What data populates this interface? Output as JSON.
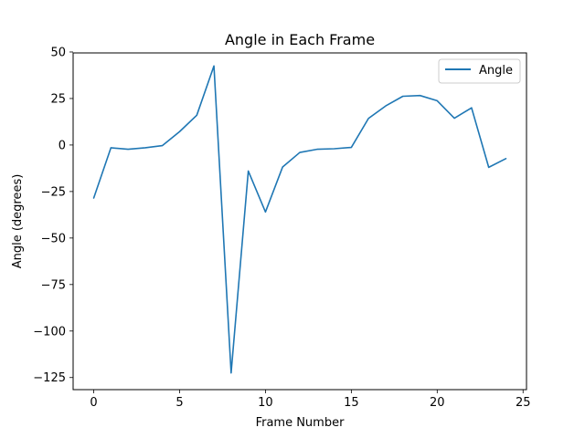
{
  "chart_data": {
    "type": "line",
    "title": "Angle in Each Frame",
    "xlabel": "Frame Number",
    "ylabel": "Angle (degrees)",
    "xlim": [
      -1.2,
      25.2
    ],
    "ylim": [
      -131.5,
      49.5
    ],
    "xticks": [
      0,
      5,
      10,
      15,
      20,
      25
    ],
    "yticks": [
      50,
      25,
      0,
      -25,
      -50,
      -75,
      -100,
      -125
    ],
    "ytick_labels": [
      "50",
      "25",
      "0",
      "−25",
      "−50",
      "−75",
      "−100",
      "−125"
    ],
    "grid": false,
    "legend": "upper right",
    "series": [
      {
        "name": "Angle",
        "color": "#1f77b4",
        "x": [
          0,
          1,
          2,
          3,
          4,
          5,
          6,
          7,
          8,
          9,
          10,
          11,
          12,
          13,
          14,
          15,
          16,
          17,
          18,
          19,
          20,
          21,
          22,
          23,
          24
        ],
        "y": [
          -28.5,
          -1.5,
          -2.3,
          -1.5,
          -0.3,
          7.2,
          16.0,
          42.5,
          -122.5,
          -14.0,
          -36.0,
          -11.8,
          -4.0,
          -2.3,
          -2.0,
          -1.3,
          14.3,
          21.0,
          26.2,
          26.6,
          23.8,
          14.4,
          20.0,
          -12.0,
          -7.3
        ]
      }
    ]
  }
}
